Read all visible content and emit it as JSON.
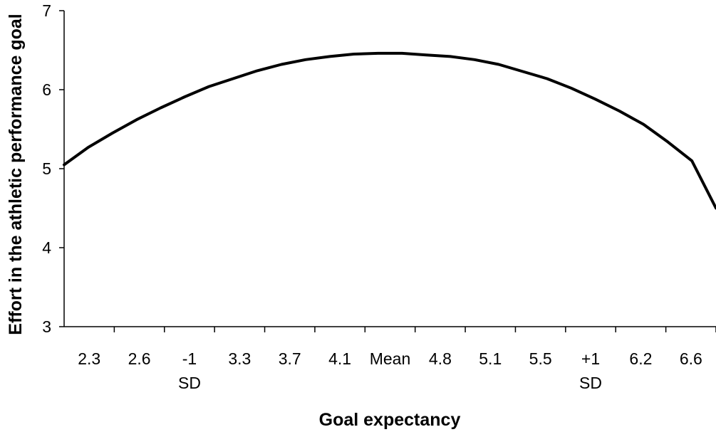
{
  "chart_data": {
    "type": "line",
    "title": "",
    "xlabel": "Goal expectancy",
    "ylabel": "Effort in the athletic performance goal",
    "ylim": [
      3,
      7
    ],
    "yticks": [
      "3",
      "4",
      "5",
      "6",
      "7"
    ],
    "xtick_labels": [
      [
        "2.3"
      ],
      [
        "2.6"
      ],
      [
        "-1",
        "SD"
      ],
      [
        "3.3"
      ],
      [
        "3.7"
      ],
      [
        "4.1"
      ],
      [
        "Mean"
      ],
      [
        "4.8"
      ],
      [
        "5.1"
      ],
      [
        "5.5"
      ],
      [
        "+1",
        "SD"
      ],
      [
        "6.2"
      ],
      [
        "6.6"
      ]
    ],
    "x": [
      0,
      0.5,
      1,
      1.5,
      2,
      2.5,
      3,
      3.5,
      4,
      4.5,
      5,
      5.5,
      6,
      6.5,
      7,
      7.5,
      8,
      8.5,
      9,
      9.5,
      10,
      10.5,
      11,
      11.5,
      12,
      12.5,
      13,
      13.5
    ],
    "series": [
      {
        "name": "",
        "values": [
          5.05,
          5.27,
          5.45,
          5.62,
          5.77,
          5.91,
          6.04,
          6.14,
          6.24,
          6.32,
          6.38,
          6.42,
          6.45,
          6.46,
          6.46,
          6.44,
          6.42,
          6.38,
          6.32,
          6.23,
          6.14,
          6.02,
          5.88,
          5.73,
          5.56,
          5.34,
          5.1,
          4.5
        ]
      }
    ],
    "grid": false,
    "legend": "none"
  }
}
